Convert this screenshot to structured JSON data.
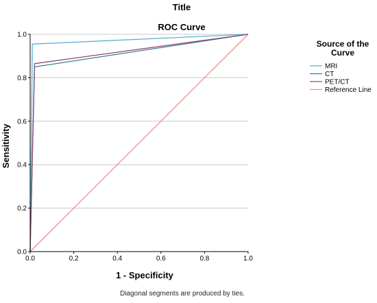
{
  "figure": {
    "header_title": "Title",
    "footnote": "Diagonal segments are produced by ties."
  },
  "chart_data": {
    "type": "line",
    "title": "ROC Curve",
    "xlabel": "1 - Specificity",
    "ylabel": "Sensitivity",
    "xlim": [
      0.0,
      1.0
    ],
    "ylim": [
      0.0,
      1.0
    ],
    "xticks": [
      "0.0",
      "0.2",
      "0.4",
      "0.6",
      "0.8",
      "1.0"
    ],
    "yticks": [
      "0.0",
      "0.2",
      "0.4",
      "0.6",
      "0.8",
      "1.0"
    ],
    "grid": "horizontal",
    "legend": {
      "title": "Source of the Curve",
      "title_lines": [
        "Source of the",
        "Curve"
      ],
      "placement": "right"
    },
    "series": [
      {
        "name": "MRI",
        "color": "#5aafd6",
        "points": [
          [
            0.0,
            0.0
          ],
          [
            0.01,
            0.955
          ],
          [
            1.0,
            1.0
          ]
        ]
      },
      {
        "name": "CT",
        "color": "#3f7a8a",
        "points": [
          [
            0.0,
            0.0
          ],
          [
            0.02,
            0.85
          ],
          [
            1.0,
            1.0
          ]
        ]
      },
      {
        "name": "PET/CT",
        "color": "#8a4a72",
        "points": [
          [
            0.0,
            0.0
          ],
          [
            0.02,
            0.865
          ],
          [
            1.0,
            1.0
          ]
        ]
      },
      {
        "name": "Reference Line",
        "color": "#e8928a",
        "points": [
          [
            0.0,
            0.0
          ],
          [
            1.0,
            1.0
          ]
        ]
      }
    ]
  }
}
